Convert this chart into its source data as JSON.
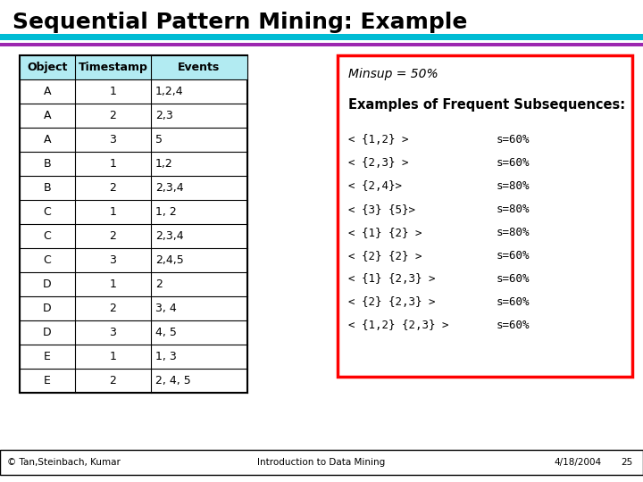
{
  "title": "Sequential Pattern Mining: Example",
  "title_fontsize": 18,
  "title_fontweight": "bold",
  "bg_color": "#ffffff",
  "line1_color": "#00bcd4",
  "line2_color": "#9c27b0",
  "table_headers": [
    "Object",
    "Timestamp",
    "Events"
  ],
  "table_header_bg": "#b2ebf2",
  "table_rows": [
    [
      "A",
      "1",
      "1,2,4"
    ],
    [
      "A",
      "2",
      "2,3"
    ],
    [
      "A",
      "3",
      "5"
    ],
    [
      "B",
      "1",
      "1,2"
    ],
    [
      "B",
      "2",
      "2,3,4"
    ],
    [
      "C",
      "1",
      "1, 2"
    ],
    [
      "C",
      "2",
      "2,3,4"
    ],
    [
      "C",
      "3",
      "2,4,5"
    ],
    [
      "D",
      "1",
      "2"
    ],
    [
      "D",
      "2",
      "3, 4"
    ],
    [
      "D",
      "3",
      "4, 5"
    ],
    [
      "E",
      "1",
      "1, 3"
    ],
    [
      "E",
      "2",
      "2, 4, 5"
    ]
  ],
  "minsup_text": "Minsup = 50%",
  "examples_label": "Examples of Frequent Subsequences:",
  "subsequences": [
    [
      "< {1,2} >",
      "s=60%"
    ],
    [
      "< {2,3} >",
      "s=60%"
    ],
    [
      "< {2,4}>",
      "s=80%"
    ],
    [
      "< {3} {5}>",
      "s=80%"
    ],
    [
      "< {1} {2} >",
      "s=80%"
    ],
    [
      "< {2} {2} >",
      "s=60%"
    ],
    [
      "< {1} {2,3} >",
      "s=60%"
    ],
    [
      "< {2} {2,3} >",
      "s=60%"
    ],
    [
      "< {1,2} {2,3} >",
      "s=60%"
    ]
  ],
  "footer_left": "© Tan,Steinbach, Kumar",
  "footer_center": "Introduction to Data Mining",
  "footer_right": "4/18/2004",
  "footer_page": "25"
}
